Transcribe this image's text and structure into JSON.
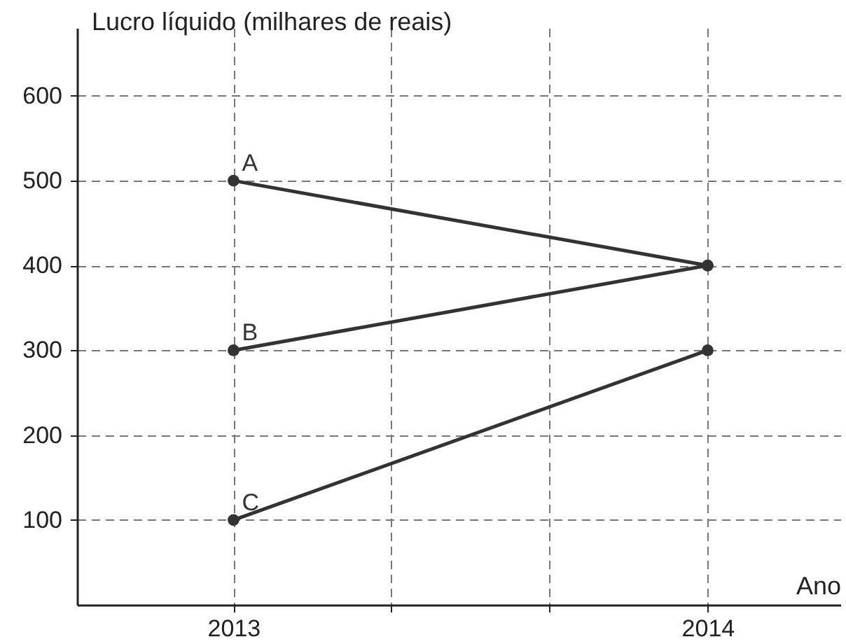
{
  "chart_data": {
    "type": "line",
    "ylabel": "Lucro líquido (milhares de reais)",
    "xlabel": "Ano",
    "x": [
      2013,
      2014
    ],
    "series": [
      {
        "name": "A",
        "color": "#333333",
        "values": [
          500,
          400
        ]
      },
      {
        "name": "B",
        "color": "#333333",
        "values": [
          300,
          400
        ]
      },
      {
        "name": "C",
        "color": "#333333",
        "values": [
          100,
          300
        ]
      }
    ],
    "xlim": [
      2012.67,
      2014.28
    ],
    "xticks": [
      2013,
      {
        "value": 2013.333,
        "label": null
      },
      {
        "value": 2013.667,
        "label": null
      },
      2014
    ],
    "ylim": [
      0,
      680
    ],
    "yticks": [
      100,
      200,
      300,
      400,
      500,
      600
    ],
    "grid": true,
    "marker": "circle"
  }
}
